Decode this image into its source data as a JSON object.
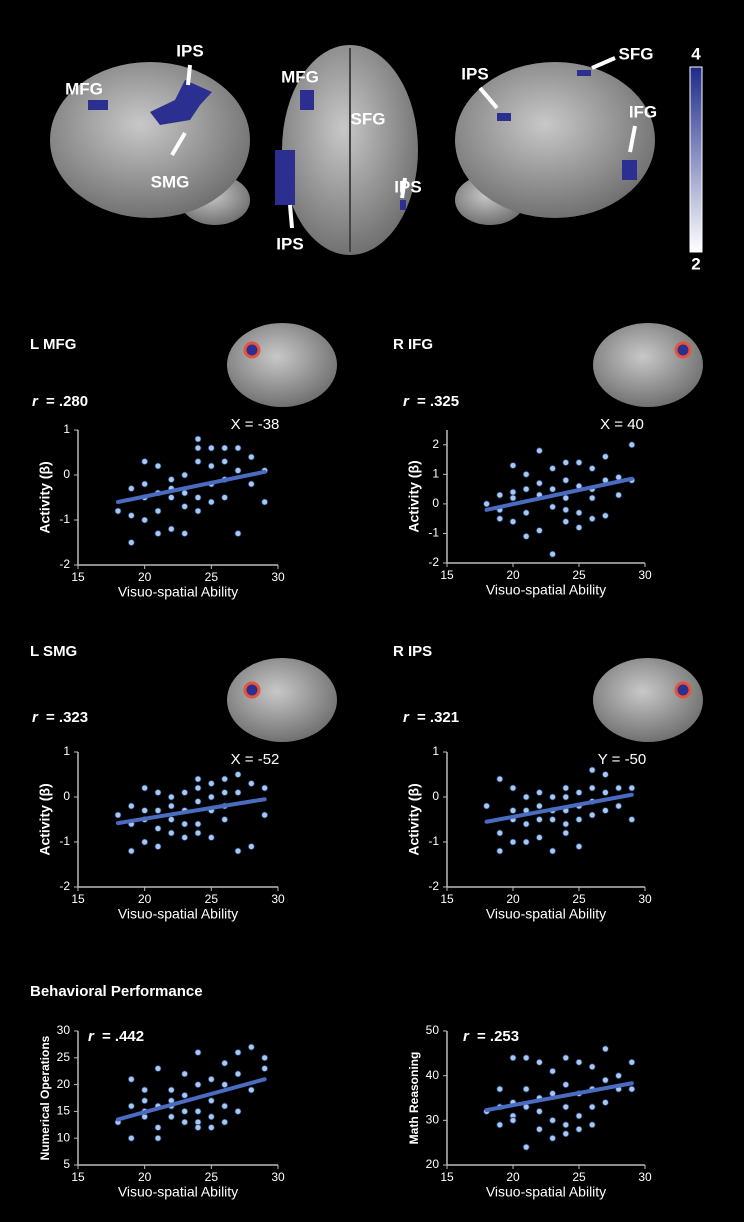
{
  "brain_map": {
    "labels": [
      "MFG",
      "IPS",
      "SMG",
      "MFG",
      "SFG",
      "IPS",
      "IPS",
      "IPS",
      "SFG",
      "IFG"
    ],
    "colorbar": {
      "max": 4,
      "min": 2
    }
  },
  "section_title": "Behavioral Performance",
  "chart_data": [
    {
      "type": "scatter",
      "title": "L MFG",
      "stat_symbol": "r",
      "stat_value": "= .280",
      "slice_label": "X = -38",
      "x_label": "Visuo-spatial Ability",
      "y_label": "Activity (β)",
      "color": "#a8c8f0",
      "x": [
        18,
        19,
        19,
        19,
        20,
        20,
        20,
        20,
        21,
        21,
        21,
        21,
        22,
        22,
        22,
        22,
        23,
        23,
        23,
        23,
        24,
        24,
        24,
        24,
        24,
        25,
        25,
        25,
        25,
        26,
        26,
        26,
        26,
        27,
        27,
        27,
        28,
        28,
        29,
        29
      ],
      "y": [
        -0.8,
        -1.5,
        -0.9,
        -0.3,
        0.3,
        -0.5,
        -1.0,
        -0.2,
        0.2,
        -0.8,
        -1.3,
        -0.4,
        -1.2,
        -0.5,
        -0.3,
        -0.1,
        0.0,
        -0.7,
        -0.4,
        -1.3,
        0.8,
        0.6,
        0.3,
        -0.5,
        -0.8,
        0.6,
        0.2,
        -0.2,
        -0.6,
        0.6,
        0.3,
        -0.1,
        -0.5,
        0.6,
        0.1,
        -1.3,
        0.4,
        -0.2,
        0.1,
        -0.6
      ],
      "fit": {
        "x": [
          18,
          29
        ],
        "y": [
          -0.6,
          0.07
        ]
      },
      "xlim": [
        15,
        30
      ],
      "xticks": [
        15,
        20,
        25,
        30
      ],
      "ylim": [
        -2,
        1
      ],
      "yticks": [
        -2,
        -1,
        0,
        1
      ]
    },
    {
      "type": "scatter",
      "title": "R IFG",
      "stat_symbol": "r",
      "stat_value": "= .325",
      "slice_label": "X = 40",
      "x_label": "Visuo-spatial Ability",
      "y_label": "Activity (β)",
      "color": "#a8c8f0",
      "x": [
        18,
        19,
        19,
        19,
        20,
        20,
        20,
        20,
        21,
        21,
        21,
        21,
        22,
        22,
        22,
        22,
        23,
        23,
        23,
        23,
        24,
        24,
        24,
        24,
        24,
        25,
        25,
        25,
        25,
        26,
        26,
        26,
        26,
        27,
        27,
        27,
        28,
        28,
        29,
        29
      ],
      "y": [
        0,
        -0.5,
        0.3,
        -0.2,
        1.3,
        0.2,
        -0.6,
        0.4,
        1.0,
        -1.1,
        0.5,
        -0.3,
        1.8,
        0.3,
        -0.9,
        0.7,
        1.2,
        -0.1,
        -1.7,
        0.5,
        1.4,
        0.8,
        -0.2,
        -0.6,
        0.2,
        1.4,
        0.6,
        -0.3,
        -0.8,
        1.2,
        0.5,
        0.2,
        -0.5,
        1.6,
        0.8,
        -0.4,
        0.9,
        0.3,
        2.0,
        0.8
      ],
      "fit": {
        "x": [
          18,
          29
        ],
        "y": [
          -0.2,
          0.85
        ]
      },
      "xlim": [
        15,
        30
      ],
      "xticks": [
        15,
        20,
        25,
        30
      ],
      "ylim": [
        -2,
        2.5
      ],
      "yticks": [
        -2,
        -1,
        0,
        1,
        2
      ]
    },
    {
      "type": "scatter",
      "title": "L SMG",
      "stat_symbol": "r",
      "stat_value": "= .323",
      "slice_label": "X = -52",
      "x_label": "Visuo-spatial Ability",
      "y_label": "Activity (β)",
      "color": "#a8c8f0",
      "x": [
        18,
        19,
        19,
        19,
        20,
        20,
        20,
        20,
        21,
        21,
        21,
        21,
        22,
        22,
        22,
        22,
        23,
        23,
        23,
        23,
        24,
        24,
        24,
        24,
        24,
        25,
        25,
        25,
        25,
        26,
        26,
        26,
        26,
        27,
        27,
        27,
        28,
        28,
        29,
        29
      ],
      "y": [
        -0.4,
        -1.2,
        -0.6,
        -0.2,
        0.2,
        -0.5,
        -1.0,
        -0.3,
        0.1,
        -0.7,
        -1.1,
        -0.3,
        -0.8,
        -0.5,
        -0.2,
        0.0,
        0.1,
        -0.6,
        -0.3,
        -0.9,
        0.4,
        0.2,
        -0.1,
        -0.6,
        -0.8,
        0.3,
        0.0,
        -0.3,
        -0.9,
        0.4,
        0.1,
        -0.2,
        -0.5,
        0.5,
        0.1,
        -1.2,
        0.3,
        -1.1,
        0.2,
        -0.4
      ],
      "fit": {
        "x": [
          18,
          29
        ],
        "y": [
          -0.58,
          -0.05
        ]
      },
      "xlim": [
        15,
        30
      ],
      "xticks": [
        15,
        20,
        25,
        30
      ],
      "ylim": [
        -2,
        1
      ],
      "yticks": [
        -2,
        -1,
        0,
        1
      ]
    },
    {
      "type": "scatter",
      "title": "R IPS",
      "stat_symbol": "r",
      "stat_value": "= .321",
      "slice_label": "Y = -50",
      "x_label": "Visuo-spatial Ability",
      "y_label": "Activity (β)",
      "color": "#a8c8f0",
      "x": [
        18,
        19,
        19,
        19,
        20,
        20,
        20,
        20,
        21,
        21,
        21,
        21,
        22,
        22,
        22,
        22,
        23,
        23,
        23,
        23,
        24,
        24,
        24,
        24,
        24,
        25,
        25,
        25,
        25,
        26,
        26,
        26,
        26,
        27,
        27,
        27,
        28,
        28,
        29,
        29
      ],
      "y": [
        -0.2,
        -1.2,
        -0.8,
        0.4,
        0.2,
        -0.5,
        -1.0,
        -0.3,
        0.0,
        -0.6,
        -1.0,
        -0.3,
        -0.2,
        -0.5,
        -0.9,
        0.1,
        0.0,
        -0.5,
        -1.2,
        -0.3,
        0.2,
        0.0,
        -0.3,
        -0.6,
        -0.8,
        0.1,
        -0.2,
        -0.5,
        -1.1,
        0.6,
        0.2,
        -0.1,
        -0.4,
        0.5,
        0.1,
        -0.3,
        0.2,
        -0.2,
        0.2,
        -0.5
      ],
      "fit": {
        "x": [
          18,
          29
        ],
        "y": [
          -0.55,
          0.05
        ]
      },
      "xlim": [
        15,
        30
      ],
      "xticks": [
        15,
        20,
        25,
        30
      ],
      "ylim": [
        -2,
        1
      ],
      "yticks": [
        -2,
        -1,
        0,
        1
      ]
    },
    {
      "type": "scatter",
      "stat_symbol": "r",
      "stat_value": "= .442",
      "x_label": "Visuo-spatial Ability",
      "y_label": "Numerical Operations",
      "color": "#a8c8f0",
      "x": [
        18,
        19,
        19,
        19,
        20,
        20,
        20,
        20,
        21,
        21,
        21,
        21,
        22,
        22,
        22,
        22,
        23,
        23,
        23,
        23,
        24,
        24,
        24,
        24,
        24,
        25,
        25,
        25,
        25,
        26,
        26,
        26,
        26,
        27,
        27,
        27,
        28,
        28,
        29,
        29
      ],
      "y": [
        13,
        10,
        16,
        21,
        14,
        17,
        19,
        15,
        23,
        10,
        16,
        12,
        17,
        14,
        19,
        16,
        22,
        13,
        18,
        15,
        26,
        20,
        15,
        13,
        12,
        21,
        17,
        14,
        12,
        24,
        20,
        16,
        13,
        26,
        22,
        15,
        27,
        19,
        25,
        23
      ],
      "fit": {
        "x": [
          18,
          29
        ],
        "y": [
          13.5,
          21
        ]
      },
      "xlim": [
        15,
        30
      ],
      "xticks": [
        15,
        20,
        25,
        30
      ],
      "ylim": [
        5,
        30
      ],
      "yticks": [
        5,
        10,
        15,
        20,
        25,
        30
      ]
    },
    {
      "type": "scatter",
      "stat_symbol": "r",
      "stat_value": "= .253",
      "x_label": "Visuo-spatial Ability",
      "y_label": "Math Reasoning",
      "color": "#a8c8f0",
      "x": [
        18,
        19,
        19,
        19,
        20,
        20,
        20,
        20,
        21,
        21,
        21,
        21,
        22,
        22,
        22,
        22,
        23,
        23,
        23,
        23,
        24,
        24,
        24,
        24,
        24,
        25,
        25,
        25,
        25,
        26,
        26,
        26,
        26,
        27,
        27,
        27,
        28,
        28,
        29,
        29
      ],
      "y": [
        32,
        29,
        37,
        33,
        44,
        34,
        31,
        30,
        44,
        24,
        37,
        33,
        43,
        35,
        28,
        32,
        41,
        36,
        26,
        30,
        44,
        38,
        33,
        29,
        27,
        43,
        36,
        31,
        28,
        42,
        37,
        33,
        29,
        46,
        39,
        34,
        40,
        37,
        43,
        37
      ],
      "fit": {
        "x": [
          18,
          29
        ],
        "y": [
          32.3,
          38.3
        ]
      },
      "xlim": [
        15,
        30
      ],
      "xticks": [
        15,
        20,
        25,
        30
      ],
      "ylim": [
        20,
        50
      ],
      "yticks": [
        20,
        30,
        40,
        50
      ]
    }
  ]
}
